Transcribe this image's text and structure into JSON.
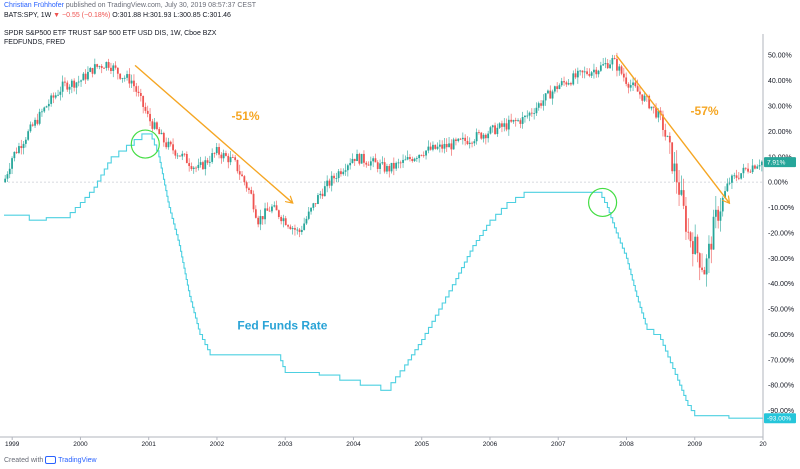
{
  "header": {
    "author": "Christian Frühhofer",
    "published": "published on TradingView.com, July 30, 2019 08:57:37 CEST",
    "symbol": "BATS:SPY, 1W",
    "change": "▼ −0.55 (−0.18%)",
    "ohlc": "O:301.88 H:301.93 L:300.85 C:301.46",
    "series1_title": "SPDR S&P500 ETF TRUST S&P 500 ETF USD DIS, 1W, Cboe BZX",
    "series2_title": "FEDFUNDS, FRED"
  },
  "footer": {
    "text": "Created with",
    "brand": "TradingView"
  },
  "colors": {
    "up": "#26a69a",
    "down": "#ef5350",
    "fed_line": "#4dd0e1",
    "arrow": "#f5a623",
    "annotation_text": "#f5a623",
    "fed_label": "#29a3d6",
    "circle": "#44dd44",
    "axis_text": "#131722",
    "current_badge": "#26a69a",
    "fed_badge": "#26c6da"
  },
  "chart_data": {
    "type": "line",
    "x_axis": {
      "ticks": [
        "1999",
        "2000",
        "2001",
        "2002",
        "2003",
        "2004",
        "2005",
        "2006",
        "2007",
        "2008",
        "2009",
        "20"
      ]
    },
    "y_axis": {
      "unit": "%",
      "ylim": [
        -100,
        56
      ],
      "ticks": [
        "50.00%",
        "40.00%",
        "30.00%",
        "20.00%",
        "10.00%",
        "0.00%",
        "-10.00%",
        "-20.00%",
        "-30.00%",
        "-40.00%",
        "-50.00%",
        "-60.00%",
        "-70.00%",
        "-80.00%",
        "-90.00%"
      ],
      "current_labels": [
        "7.91%",
        "-93.00%"
      ]
    },
    "series": [
      {
        "name": "SPDR S&P500 ETF TRUST",
        "style": "candlestick",
        "x": [
          1998.88,
          1999.0,
          1999.25,
          1999.5,
          1999.75,
          2000.0,
          2000.2,
          2000.4,
          2000.6,
          2000.75,
          2001.0,
          2001.25,
          2001.5,
          2001.72,
          2002.0,
          2002.25,
          2002.5,
          2002.6,
          2002.8,
          2003.0,
          2003.2,
          2003.5,
          2003.75,
          2004.0,
          2004.25,
          2004.5,
          2004.75,
          2005.0,
          2005.5,
          2006.0,
          2006.5,
          2007.0,
          2007.3,
          2007.6,
          2007.8,
          2008.0,
          2008.3,
          2008.5,
          2008.75,
          2008.9,
          2009.0,
          2009.15,
          2009.3,
          2009.5,
          2009.75,
          2009.95
        ],
        "values": [
          0,
          10,
          20,
          30,
          38,
          40,
          45,
          47,
          42,
          40,
          25,
          15,
          10,
          5,
          12,
          8,
          -5,
          -15,
          -10,
          -15,
          -20,
          -5,
          3,
          10,
          8,
          5,
          8,
          12,
          15,
          20,
          25,
          38,
          42,
          45,
          48,
          40,
          32,
          25,
          0,
          -20,
          -25,
          -35,
          -15,
          0,
          5,
          8
        ]
      },
      {
        "name": "FEDFUNDS",
        "style": "step",
        "x": [
          1998.88,
          1999.25,
          1999.5,
          1999.85,
          2000.0,
          2000.2,
          2000.45,
          2000.9,
          2001.05,
          2001.15,
          2001.3,
          2001.45,
          2001.6,
          2001.75,
          2001.9,
          2002.9,
          2003.0,
          2003.5,
          2004.4,
          2004.55,
          2004.75,
          2005.0,
          2005.25,
          2005.5,
          2005.75,
          2006.0,
          2006.25,
          2006.5,
          2007.6,
          2007.72,
          2007.85,
          2008.0,
          2008.15,
          2008.3,
          2008.5,
          2008.75,
          2008.9,
          2009.0,
          2009.25,
          2009.5,
          2009.75,
          2010.0
        ],
        "values": [
          -13,
          -15,
          -14,
          -12,
          -8,
          -2,
          10,
          19,
          17,
          10,
          -10,
          -25,
          -45,
          -60,
          -68,
          -68,
          -75,
          -76,
          -82,
          -79,
          -72,
          -62,
          -50,
          -38,
          -25,
          -15,
          -8,
          -4,
          -4,
          -10,
          -20,
          -30,
          -45,
          -58,
          -62,
          -78,
          -88,
          -92,
          -92,
          -93,
          -93,
          -93
        ]
      }
    ],
    "annotations": [
      {
        "text": "-51%",
        "kind": "arrow",
        "from": [
          2000.8,
          46
        ],
        "to": [
          2003.1,
          -8
        ]
      },
      {
        "text": "-57%",
        "kind": "arrow",
        "from": [
          2007.85,
          50
        ],
        "to": [
          2009.5,
          -8
        ]
      },
      {
        "text": "",
        "kind": "circle",
        "at": [
          2000.95,
          15
        ]
      },
      {
        "text": "",
        "kind": "circle",
        "at": [
          2007.65,
          -8
        ]
      },
      {
        "text": "Fed Funds Rate",
        "kind": "label",
        "at": [
          2002.3,
          -58
        ]
      }
    ]
  }
}
